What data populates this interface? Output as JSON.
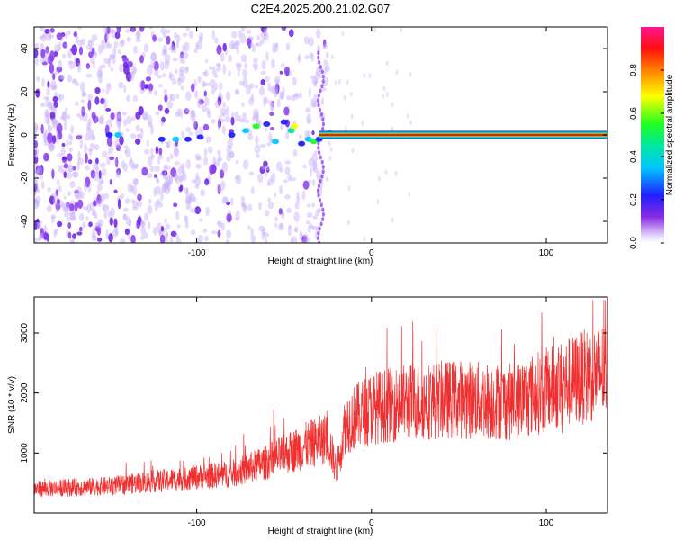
{
  "figure_title": "C2E4.2025.200.21.02.G07",
  "chart_data": [
    {
      "type": "heatmap",
      "title": "C2E4.2025.200.21.02.G07",
      "xlabel": "Height of straight line (km)",
      "ylabel": "Frequency (Hz)",
      "xlim": [
        -193,
        135
      ],
      "ylim": [
        -50,
        50
      ],
      "x_ticks": [
        -100,
        0,
        100
      ],
      "y_ticks": [
        -40,
        -20,
        0,
        20,
        40
      ],
      "colorbar": {
        "label": "Normalized spectral amplitude",
        "range": [
          0,
          1
        ],
        "ticks": [
          0.0,
          0.2,
          0.4,
          0.6,
          0.8
        ]
      },
      "features": {
        "carrier_frequency_hz": 0,
        "carrier_start_km": -30,
        "carrier_end_km": 135,
        "noise_region_end_km": -25
      }
    },
    {
      "type": "line",
      "xlabel": "Height of straight line (km)",
      "ylabel": "SNR (10 * v/v)",
      "xlim": [
        -193,
        135
      ],
      "ylim": [
        0,
        3600
      ],
      "x_ticks": [
        -100,
        0,
        100
      ],
      "y_ticks": [
        1000,
        2000,
        3000
      ],
      "color": "#f03030",
      "trend": [
        {
          "x": -193,
          "y": 400
        },
        {
          "x": -150,
          "y": 450
        },
        {
          "x": -100,
          "y": 600
        },
        {
          "x": -80,
          "y": 650
        },
        {
          "x": -60,
          "y": 850
        },
        {
          "x": -40,
          "y": 1100
        },
        {
          "x": -25,
          "y": 1250
        },
        {
          "x": -20,
          "y": 700
        },
        {
          "x": -15,
          "y": 1500
        },
        {
          "x": 0,
          "y": 1750
        },
        {
          "x": 20,
          "y": 1850
        },
        {
          "x": 50,
          "y": 1900
        },
        {
          "x": 80,
          "y": 1850
        },
        {
          "x": 100,
          "y": 2050
        },
        {
          "x": 120,
          "y": 2250
        },
        {
          "x": 135,
          "y": 2400
        }
      ]
    }
  ]
}
